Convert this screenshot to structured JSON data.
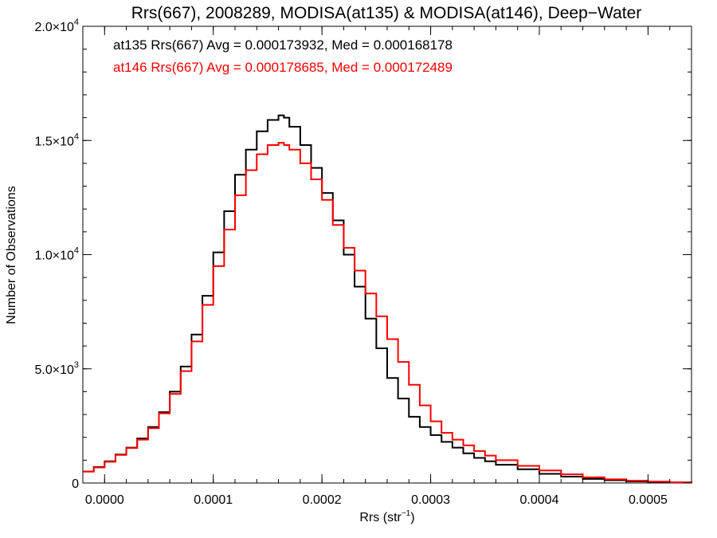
{
  "chart_data": {
    "type": "line",
    "step": true,
    "title": "Rrs(667), 2008289, MODISA(at135) & MODISA(at146), Deep−Water",
    "xlabel": "Rrs (str",
    "xlabel_sup": "−1",
    "xlabel_close": ")",
    "ylabel": "Number of Observations",
    "xlim": [
      -2e-05,
      0.00054
    ],
    "ylim": [
      0,
      20000
    ],
    "grid": false,
    "x_ticks": [
      0.0,
      0.0001,
      0.0002,
      0.0003,
      0.0004,
      0.0005
    ],
    "x_tick_labels": [
      "0.0000",
      "0.0001",
      "0.0002",
      "0.0003",
      "0.0004",
      "0.0005"
    ],
    "y_ticks": [
      0,
      5000,
      10000,
      15000,
      20000
    ],
    "y_tick_labels": [
      {
        "mant": "0",
        "exp": ""
      },
      {
        "mant": "5.0×10",
        "exp": "3"
      },
      {
        "mant": "1.0×10",
        "exp": "4"
      },
      {
        "mant": "1.5×10",
        "exp": "4"
      },
      {
        "mant": "2.0×10",
        "exp": "4"
      }
    ],
    "annotations": [
      "at135 Rrs(667) Avg = 0.000173932, Med = 0.000168178",
      "at146 Rrs(667) Avg = 0.000178685, Med = 0.000172489"
    ],
    "series": [
      {
        "color": "#000000",
        "x": [
          -2e-05,
          -1e-05,
          0.0,
          1e-05,
          2e-05,
          3e-05,
          4e-05,
          5e-05,
          6e-05,
          7e-05,
          8e-05,
          9e-05,
          0.0001,
          0.00011,
          0.00012,
          0.00013,
          0.00014,
          0.00015,
          0.00016,
          0.000165,
          0.00017,
          0.00018,
          0.00019,
          0.0002,
          0.00021,
          0.00022,
          0.00023,
          0.00024,
          0.00025,
          0.00026,
          0.00027,
          0.00028,
          0.00029,
          0.0003,
          0.00031,
          0.00032,
          0.00033,
          0.00034,
          0.00035,
          0.00036,
          0.00038,
          0.0004,
          0.00042,
          0.00044,
          0.00046,
          0.00048,
          0.0005,
          0.00052,
          0.00054
        ],
        "y": [
          500,
          700,
          950,
          1250,
          1550,
          1950,
          2450,
          3100,
          4000,
          5100,
          6500,
          8200,
          10100,
          11900,
          13500,
          14600,
          15400,
          15900,
          16100,
          16000,
          15600,
          14800,
          13800,
          12700,
          11500,
          10000,
          8600,
          7200,
          5900,
          4600,
          3700,
          2900,
          2450,
          2100,
          1800,
          1550,
          1300,
          1100,
          950,
          800,
          600,
          400,
          280,
          180,
          120,
          70,
          40,
          20,
          10
        ]
      },
      {
        "color": "#ff0000",
        "x": [
          -2e-05,
          -1e-05,
          0.0,
          1e-05,
          2e-05,
          3e-05,
          4e-05,
          5e-05,
          6e-05,
          7e-05,
          8e-05,
          9e-05,
          0.0001,
          0.00011,
          0.00012,
          0.00013,
          0.00014,
          0.00015,
          0.00016,
          0.000165,
          0.00017,
          0.00018,
          0.00019,
          0.0002,
          0.00021,
          0.00022,
          0.00023,
          0.00024,
          0.00025,
          0.00026,
          0.00027,
          0.00028,
          0.00029,
          0.0003,
          0.00031,
          0.00032,
          0.00033,
          0.00034,
          0.00035,
          0.00036,
          0.00038,
          0.0004,
          0.00042,
          0.00044,
          0.00046,
          0.00048,
          0.0005,
          0.00052,
          0.00054
        ],
        "y": [
          500,
          680,
          930,
          1230,
          1530,
          1900,
          2400,
          3050,
          3900,
          4900,
          6200,
          7800,
          9500,
          11100,
          12600,
          13700,
          14400,
          14800,
          14900,
          14800,
          14600,
          14000,
          13300,
          12400,
          11300,
          10300,
          9300,
          8300,
          7300,
          6300,
          5300,
          4300,
          3400,
          2700,
          2200,
          1900,
          1650,
          1400,
          1200,
          1000,
          750,
          550,
          380,
          250,
          160,
          100,
          60,
          30,
          15
        ]
      }
    ]
  }
}
